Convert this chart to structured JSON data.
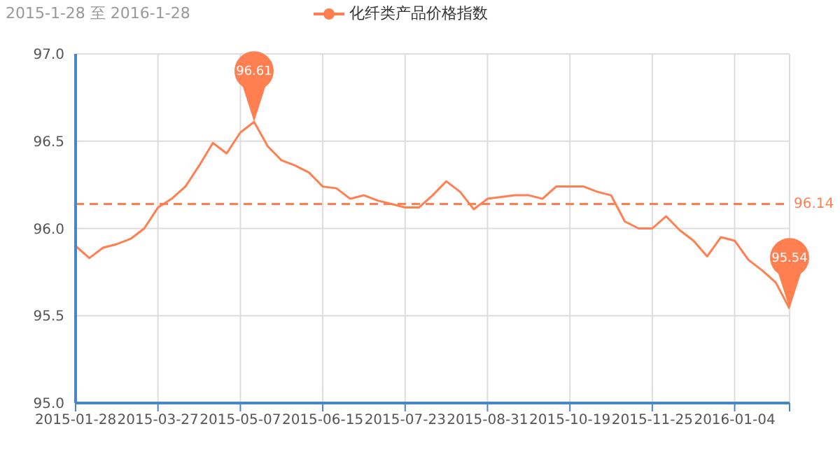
{
  "chart_data": {
    "type": "line",
    "subtitle": "2015-1-28 至 2016-1-28",
    "categories": [
      "2015-01-28",
      null,
      null,
      null,
      null,
      null,
      "2015-03-27",
      null,
      null,
      null,
      null,
      null,
      "2015-05-07",
      null,
      null,
      null,
      null,
      null,
      "2015-06-15",
      null,
      null,
      null,
      null,
      null,
      "2015-07-23",
      null,
      null,
      null,
      null,
      null,
      "2015-08-31",
      null,
      null,
      null,
      null,
      null,
      "2015-10-19",
      null,
      null,
      null,
      null,
      null,
      "2015-11-25",
      null,
      null,
      null,
      null,
      null,
      "2016-01-04",
      null,
      null,
      null,
      null
    ],
    "series": [
      {
        "name": "化纤类产品价格指数",
        "color": "#ff7f50",
        "values": [
          95.9,
          95.83,
          95.89,
          95.91,
          95.94,
          96.0,
          96.12,
          96.17,
          96.24,
          96.36,
          96.49,
          96.43,
          96.55,
          96.61,
          96.47,
          96.39,
          96.36,
          96.32,
          96.24,
          96.23,
          96.17,
          96.19,
          96.16,
          96.14,
          96.12,
          96.12,
          96.19,
          96.27,
          96.21,
          96.11,
          96.17,
          96.18,
          96.19,
          96.19,
          96.17,
          96.24,
          96.24,
          96.24,
          96.21,
          96.19,
          96.04,
          96.0,
          96.0,
          96.07,
          95.99,
          95.93,
          95.84,
          95.95,
          95.93,
          95.82,
          95.76,
          95.69,
          95.54
        ]
      }
    ],
    "ylim": [
      95,
      97
    ],
    "yticks": [
      {
        "value": 95,
        "label": "95.0"
      },
      {
        "value": 95.5,
        "label": "95.5"
      },
      {
        "value": 96,
        "label": "96.0"
      },
      {
        "value": 96.5,
        "label": "96.5"
      },
      {
        "value": 97,
        "label": "97.0"
      }
    ],
    "grid": true,
    "legend": "top",
    "line_style": "solid",
    "ref_lines": [
      {
        "axis": "y",
        "value": 96.14,
        "label": "96.14",
        "color": "#ff7f50",
        "line_style": "dashed"
      }
    ],
    "annotations": [
      "96.61",
      "95.54"
    ]
  }
}
